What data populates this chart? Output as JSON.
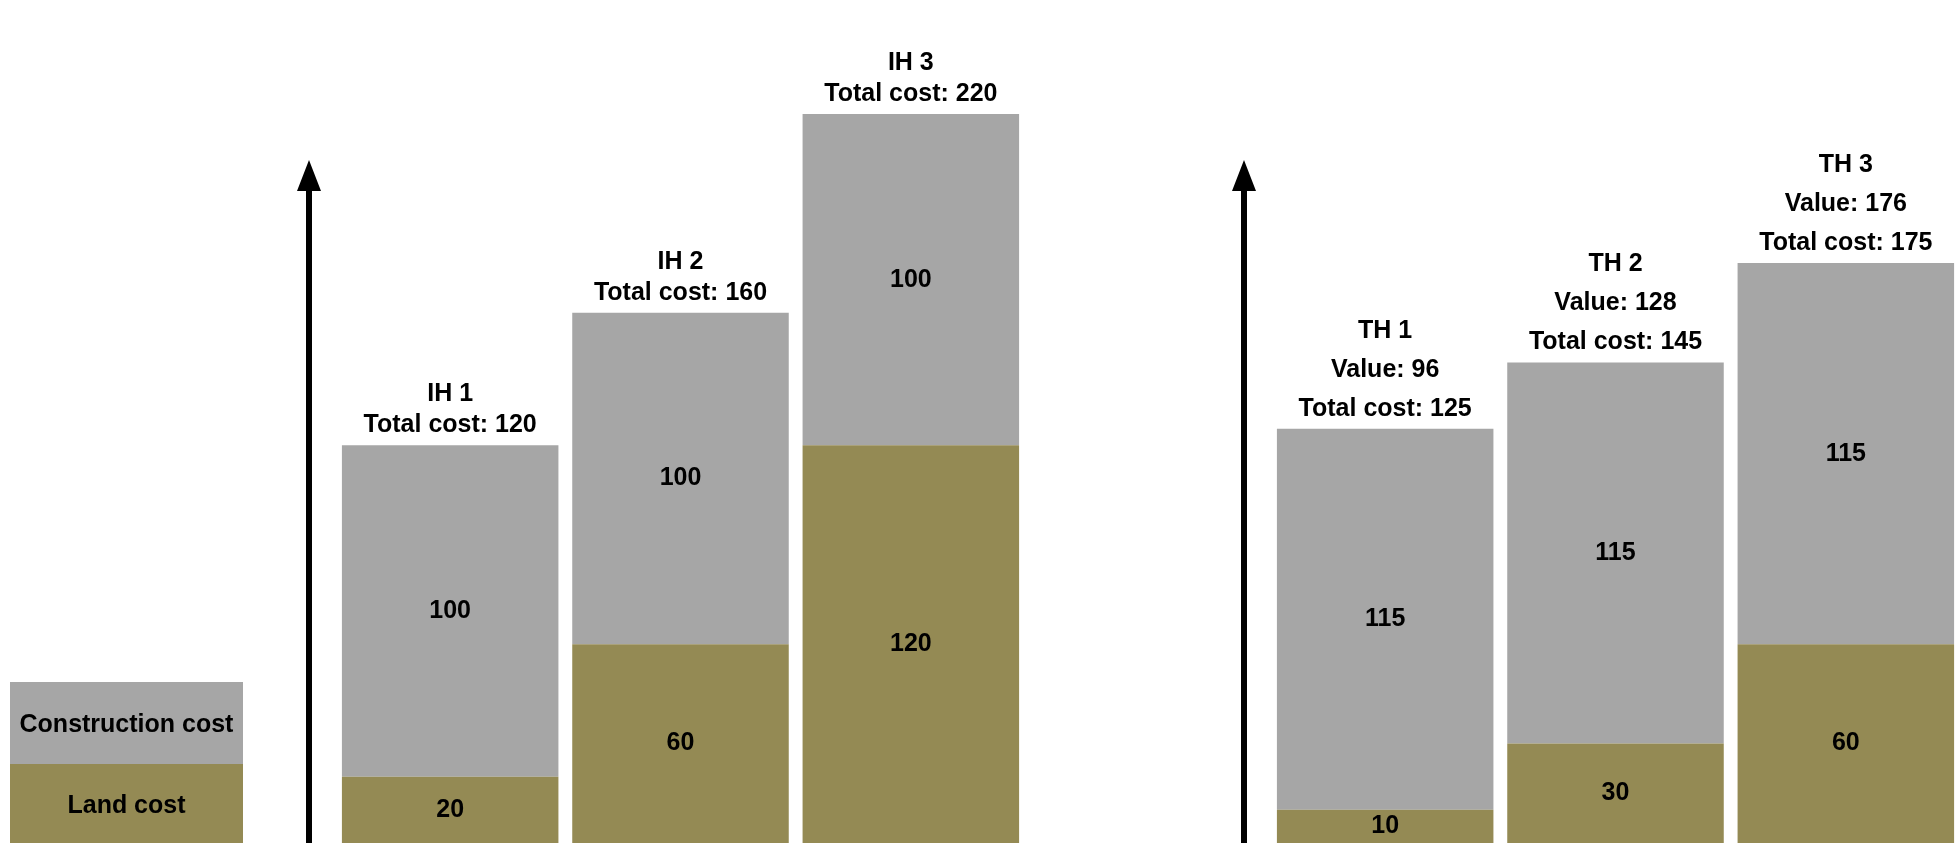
{
  "chart_data": [
    {
      "type": "bar",
      "stacked": true,
      "categories": [
        null,
        null,
        null
      ],
      "annotations": [
        "IH 1",
        "IH 2",
        "IH 3"
      ],
      "series": [
        {
          "name": "Land cost",
          "color": "#948a54",
          "values": [
            20,
            60,
            120
          ]
        },
        {
          "name": "Construction cost",
          "color": "#a6a6a6",
          "values": [
            100,
            100,
            100
          ]
        }
      ],
      "data_labels": true,
      "totals": [
        "Total cost: 120",
        "Total cost: 160",
        "Total cost: 220"
      ],
      "legend": "left",
      "tick_labels": false,
      "grid": false
    },
    {
      "type": "bar",
      "stacked": true,
      "categories": [
        null,
        null,
        null
      ],
      "series": [
        {
          "color": "#948a54",
          "values": [
            10,
            30,
            60
          ]
        },
        {
          "color": "#a6a6a6",
          "values": [
            115,
            115,
            115
          ]
        }
      ],
      "data_labels": true,
      "totals": [
        "Total cost: 125",
        "Total cost: 145",
        "Total cost: 175"
      ],
      "annotations": [
        "TH 1",
        "Value: 96",
        "TH 2",
        "Value: 128",
        "TH 3",
        "Value: 176"
      ],
      "tick_labels": false,
      "grid": false
    }
  ]
}
